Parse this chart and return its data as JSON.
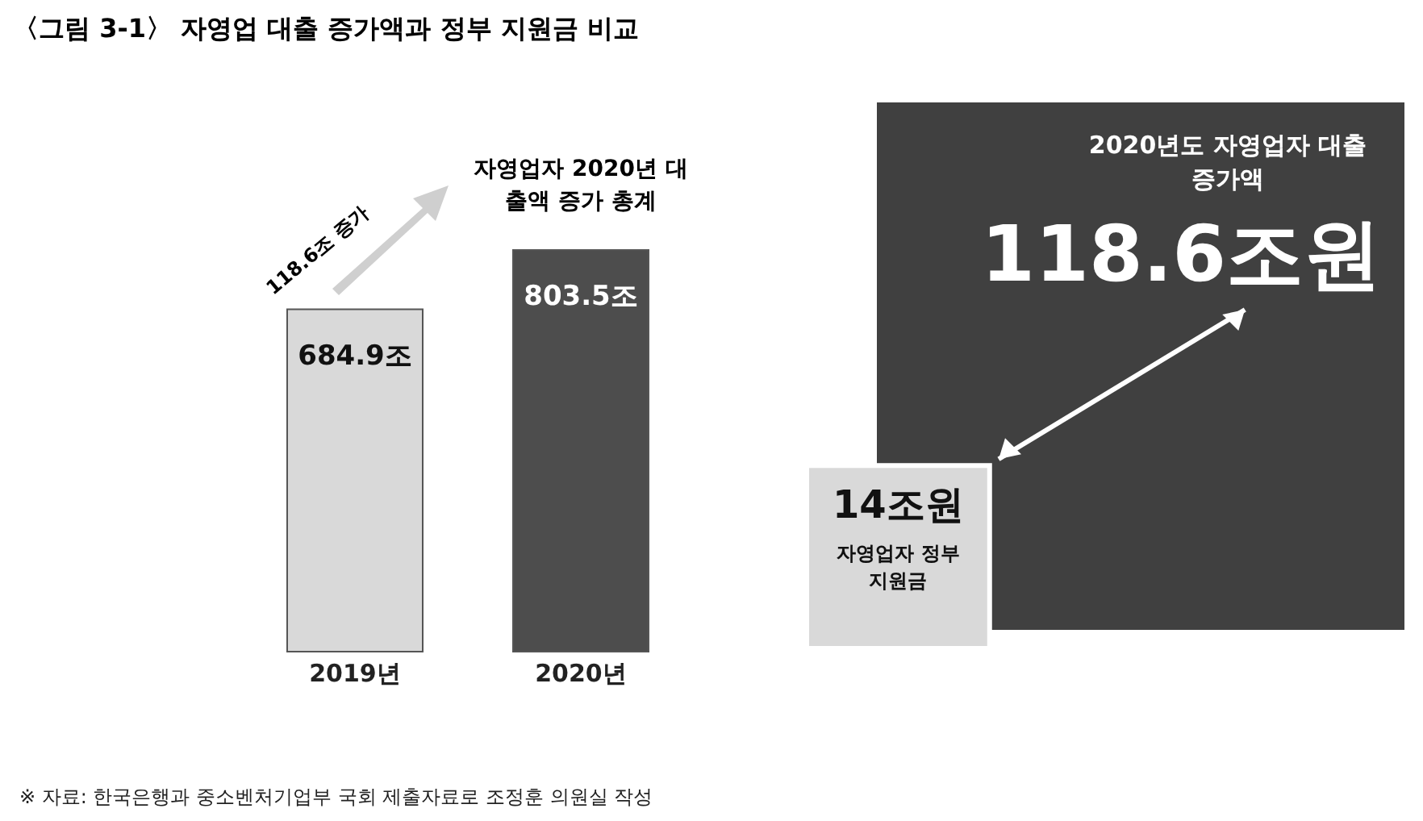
{
  "chart_data": [
    {
      "type": "bar",
      "title": "〈그림 3-1〉 자영업 대출 증가액과 정부 지원금 비교",
      "categories": [
        "2019년",
        "2020년"
      ],
      "values": [
        684.9,
        803.5
      ],
      "colors": [
        "#d9d9d9",
        "#4d4d4d"
      ],
      "value_labels": [
        "684.9조",
        "803.5조"
      ],
      "annotations": [
        "118.6조 증가",
        "자영업자 2020년 대출액 증가 총계"
      ]
    },
    {
      "type": "other",
      "categories": [
        "자영업자 정부지원금",
        "2020년도 자영업자 대출 증가액"
      ],
      "values": [
        14,
        118.6
      ],
      "colors": [
        "#d9d9d9",
        "#404040"
      ],
      "value_labels": [
        "14조원",
        "118.6조원"
      ],
      "annotations": [
        "※ 자료: 한국은행과 중소벤처기업부 국회 제출자료로 조정훈 의원실 작성"
      ]
    }
  ]
}
